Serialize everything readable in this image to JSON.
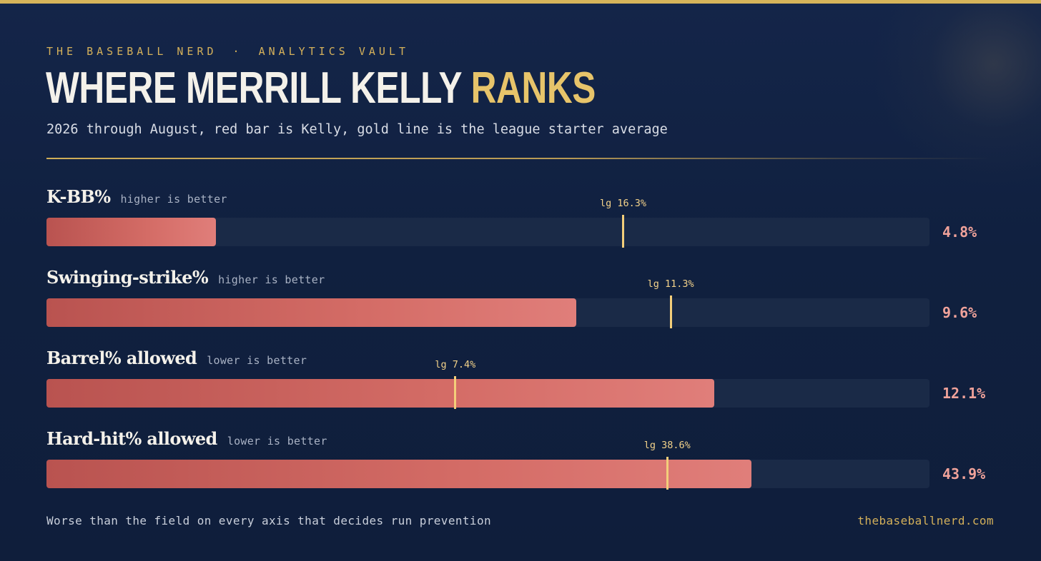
{
  "header": {
    "kicker_brand": "THE BASEBALL NERD",
    "kicker_separator": "·",
    "kicker_section": "ANALYTICS VAULT",
    "title_main": "WHERE MERRILL KELLY ",
    "title_accent": "RANKS",
    "subtitle": "2026 through August, red bar is Kelly, gold line is the league starter average"
  },
  "chart_data": {
    "type": "bar",
    "orientation": "horizontal",
    "axis_range_percent": [
      0,
      100
    ],
    "metrics": [
      {
        "label": "K-BB%",
        "note": "higher is better",
        "value": 4.8,
        "value_label": "4.8%",
        "league": 16.3,
        "league_label": "lg 16.3%",
        "bar_fraction": 0.192,
        "league_fraction": 0.653
      },
      {
        "label": "Swinging-strike%",
        "note": "higher is better",
        "value": 9.6,
        "value_label": "9.6%",
        "league": 11.3,
        "league_label": "lg 11.3%",
        "bar_fraction": 0.6,
        "league_fraction": 0.707
      },
      {
        "label": "Barrel% allowed",
        "note": "lower is better",
        "value": 12.1,
        "value_label": "12.1%",
        "league": 7.4,
        "league_label": "lg 7.4%",
        "bar_fraction": 0.756,
        "league_fraction": 0.463
      },
      {
        "label": "Hard-hit% allowed",
        "note": "lower is better",
        "value": 43.9,
        "value_label": "43.9%",
        "league": 38.6,
        "league_label": "lg 38.6%",
        "bar_fraction": 0.798,
        "league_fraction": 0.703
      }
    ],
    "colors": {
      "kelly_bar": "#d46c66",
      "league_line": "#f3ce7a",
      "track": "#1a2a47"
    }
  },
  "footer": {
    "note": "Worse than the field on every axis that decides run prevention",
    "site": "thebaseballnerd.com"
  }
}
